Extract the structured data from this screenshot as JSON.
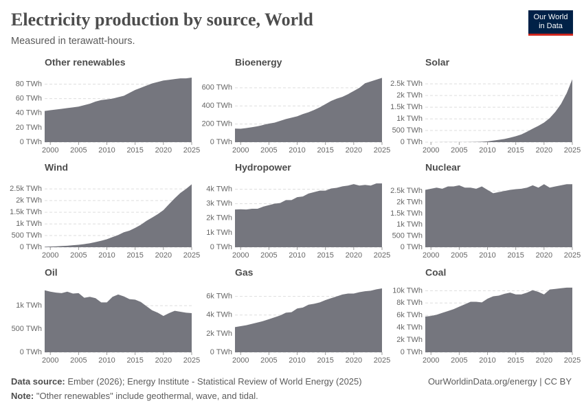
{
  "title": "Electricity production by source, World",
  "subtitle": "Measured in terawatt-hours.",
  "logo": [
    "Our World",
    "in Data"
  ],
  "source_label": "Data source:",
  "source": "Ember (2026); Energy Institute - Statistical Review of World Energy (2025)",
  "url": "OurWorldinData.org/energy | CC BY",
  "note_label": "Note:",
  "note": "\"Other renewables\" include geothermal, wave, and tidal.",
  "chart_data": [
    {
      "type": "area",
      "title": "Other renewables",
      "color": "#75767e",
      "x": [
        1999,
        2000,
        2001,
        2002,
        2003,
        2004,
        2005,
        2006,
        2007,
        2008,
        2009,
        2010,
        2011,
        2012,
        2013,
        2014,
        2015,
        2016,
        2017,
        2018,
        2019,
        2020,
        2021,
        2022,
        2023,
        2024,
        2025
      ],
      "values": [
        43,
        44,
        45,
        46,
        47,
        48,
        49,
        51,
        53,
        56,
        58,
        59,
        60,
        62,
        64,
        68,
        72,
        75,
        78,
        81,
        83,
        85,
        86,
        87,
        88,
        88,
        89
      ],
      "xlim": [
        1999,
        2025
      ],
      "xticks": [
        2000,
        2005,
        2010,
        2015,
        2020,
        2025
      ],
      "ylim": [
        0,
        90
      ],
      "yticks": [
        {
          "value": 0,
          "label": "0 TWh"
        },
        {
          "value": 20,
          "label": "20 TWh"
        },
        {
          "value": 40,
          "label": "40 TWh"
        },
        {
          "value": 60,
          "label": "60 TWh"
        },
        {
          "value": 80,
          "label": "80 TWh"
        }
      ],
      "grid": true
    },
    {
      "type": "area",
      "title": "Bioenergy",
      "color": "#75767e",
      "x": [
        1999,
        2000,
        2001,
        2002,
        2003,
        2004,
        2005,
        2006,
        2007,
        2008,
        2009,
        2010,
        2011,
        2012,
        2013,
        2014,
        2015,
        2016,
        2017,
        2018,
        2019,
        2020,
        2021,
        2022,
        2023,
        2024,
        2025
      ],
      "values": [
        150,
        148,
        155,
        165,
        175,
        190,
        205,
        215,
        235,
        255,
        270,
        285,
        310,
        330,
        355,
        385,
        420,
        455,
        480,
        500,
        530,
        565,
        600,
        650,
        670,
        690,
        710
      ],
      "xlim": [
        1999,
        2025
      ],
      "xticks": [
        2000,
        2005,
        2010,
        2015,
        2020,
        2025
      ],
      "ylim": [
        0,
        720
      ],
      "yticks": [
        {
          "value": 0,
          "label": "0 TWh"
        },
        {
          "value": 200,
          "label": "200 TWh"
        },
        {
          "value": 400,
          "label": "400 TWh"
        },
        {
          "value": 600,
          "label": "600 TWh"
        }
      ],
      "grid": true
    },
    {
      "type": "area",
      "title": "Solar",
      "color": "#75767e",
      "x": [
        1999,
        2000,
        2001,
        2002,
        2003,
        2004,
        2005,
        2006,
        2007,
        2008,
        2009,
        2010,
        2011,
        2012,
        2013,
        2014,
        2015,
        2016,
        2017,
        2018,
        2019,
        2020,
        2021,
        2022,
        2023,
        2024,
        2025
      ],
      "values": [
        1,
        1,
        1,
        2,
        2,
        3,
        4,
        5,
        7,
        12,
        20,
        33,
        65,
        100,
        135,
        190,
        255,
        330,
        450,
        580,
        700,
        840,
        1030,
        1300,
        1640,
        2100,
        2700
      ],
      "xlim": [
        1999,
        2025
      ],
      "xticks": [
        2000,
        2005,
        2010,
        2015,
        2020,
        2025
      ],
      "ylim": [
        0,
        2800
      ],
      "yticks": [
        {
          "value": 0,
          "label": "0 TWh"
        },
        {
          "value": 500,
          "label": "500 TWh"
        },
        {
          "value": 1000,
          "label": "1k TWh"
        },
        {
          "value": 1500,
          "label": "1.5k TWh"
        },
        {
          "value": 2000,
          "label": "2k TWh"
        },
        {
          "value": 2500,
          "label": "2.5k TWh"
        }
      ],
      "grid": true
    },
    {
      "type": "area",
      "title": "Wind",
      "color": "#75767e",
      "x": [
        1999,
        2000,
        2001,
        2002,
        2003,
        2004,
        2005,
        2006,
        2007,
        2008,
        2009,
        2010,
        2011,
        2012,
        2013,
        2014,
        2015,
        2016,
        2017,
        2018,
        2019,
        2020,
        2021,
        2022,
        2023,
        2024,
        2025
      ],
      "values": [
        20,
        31,
        38,
        52,
        64,
        85,
        104,
        133,
        170,
        220,
        276,
        342,
        435,
        525,
        640,
        710,
        830,
        960,
        1130,
        1270,
        1420,
        1590,
        1850,
        2100,
        2330,
        2500,
        2700
      ],
      "xlim": [
        1999,
        2025
      ],
      "xticks": [
        2000,
        2005,
        2010,
        2015,
        2020,
        2025
      ],
      "ylim": [
        0,
        2800
      ],
      "yticks": [
        {
          "value": 0,
          "label": "0 TWh"
        },
        {
          "value": 500,
          "label": "500 TWh"
        },
        {
          "value": 1000,
          "label": "1k TWh"
        },
        {
          "value": 1500,
          "label": "1.5k TWh"
        },
        {
          "value": 2000,
          "label": "2k TWh"
        },
        {
          "value": 2500,
          "label": "2.5k TWh"
        }
      ],
      "grid": true
    },
    {
      "type": "area",
      "title": "Hydropower",
      "color": "#75767e",
      "x": [
        1999,
        2000,
        2001,
        2002,
        2003,
        2004,
        2005,
        2006,
        2007,
        2008,
        2009,
        2010,
        2011,
        2012,
        2013,
        2014,
        2015,
        2016,
        2017,
        2018,
        2019,
        2020,
        2021,
        2022,
        2023,
        2024,
        2025
      ],
      "values": [
        2600,
        2620,
        2600,
        2650,
        2650,
        2800,
        2900,
        3000,
        3050,
        3250,
        3250,
        3450,
        3500,
        3700,
        3800,
        3900,
        3900,
        4050,
        4100,
        4200,
        4250,
        4350,
        4250,
        4300,
        4250,
        4400,
        4400
      ],
      "xlim": [
        1999,
        2025
      ],
      "xticks": [
        2000,
        2005,
        2010,
        2015,
        2020,
        2025
      ],
      "ylim": [
        0,
        4500
      ],
      "yticks": [
        {
          "value": 0,
          "label": "0 TWh"
        },
        {
          "value": 1000,
          "label": "1k TWh"
        },
        {
          "value": 2000,
          "label": "2k TWh"
        },
        {
          "value": 3000,
          "label": "3k TWh"
        },
        {
          "value": 4000,
          "label": "4k TWh"
        }
      ],
      "grid": true
    },
    {
      "type": "area",
      "title": "Nuclear",
      "color": "#75767e",
      "x": [
        1999,
        2000,
        2001,
        2002,
        2003,
        2004,
        2005,
        2006,
        2007,
        2008,
        2009,
        2010,
        2011,
        2012,
        2013,
        2014,
        2015,
        2016,
        2017,
        2018,
        2019,
        2020,
        2021,
        2022,
        2023,
        2024,
        2025
      ],
      "values": [
        2550,
        2600,
        2650,
        2600,
        2700,
        2700,
        2750,
        2650,
        2650,
        2600,
        2700,
        2550,
        2400,
        2450,
        2500,
        2550,
        2580,
        2600,
        2650,
        2750,
        2650,
        2800,
        2650,
        2700,
        2750,
        2800,
        2800
      ],
      "xlim": [
        1999,
        2025
      ],
      "xticks": [
        2000,
        2005,
        2010,
        2015,
        2020,
        2025
      ],
      "ylim": [
        0,
        2900
      ],
      "yticks": [
        {
          "value": 0,
          "label": "0 TWh"
        },
        {
          "value": 500,
          "label": "500 TWh"
        },
        {
          "value": 1000,
          "label": "1k TWh"
        },
        {
          "value": 1500,
          "label": "1.5k TWh"
        },
        {
          "value": 2000,
          "label": "2k TWh"
        },
        {
          "value": 2500,
          "label": "2.5k TWh"
        }
      ],
      "grid": true
    },
    {
      "type": "area",
      "title": "Oil",
      "color": "#75767e",
      "x": [
        1999,
        2000,
        2001,
        2002,
        2003,
        2004,
        2005,
        2006,
        2007,
        2008,
        2009,
        2010,
        2011,
        2012,
        2013,
        2014,
        2015,
        2016,
        2017,
        2018,
        2019,
        2020,
        2021,
        2022,
        2023,
        2024,
        2025
      ],
      "values": [
        1330,
        1300,
        1280,
        1270,
        1300,
        1260,
        1270,
        1170,
        1190,
        1160,
        1070,
        1070,
        1190,
        1240,
        1200,
        1140,
        1130,
        1080,
        990,
        900,
        850,
        780,
        840,
        890,
        870,
        850,
        840
      ],
      "xlim": [
        1999,
        2025
      ],
      "xticks": [
        2000,
        2005,
        2010,
        2015,
        2020,
        2025
      ],
      "ylim": [
        0,
        1400
      ],
      "yticks": [
        {
          "value": 0,
          "label": "0 TWh"
        },
        {
          "value": 500,
          "label": "500 TWh"
        },
        {
          "value": 1000,
          "label": "1k TWh"
        }
      ],
      "grid": true
    },
    {
      "type": "area",
      "title": "Gas",
      "color": "#75767e",
      "x": [
        1999,
        2000,
        2001,
        2002,
        2003,
        2004,
        2005,
        2006,
        2007,
        2008,
        2009,
        2010,
        2011,
        2012,
        2013,
        2014,
        2015,
        2016,
        2017,
        2018,
        2019,
        2020,
        2021,
        2022,
        2023,
        2024,
        2025
      ],
      "values": [
        2700,
        2800,
        2900,
        3050,
        3200,
        3350,
        3550,
        3750,
        3950,
        4250,
        4300,
        4700,
        4800,
        5100,
        5200,
        5350,
        5600,
        5800,
        6000,
        6200,
        6300,
        6300,
        6450,
        6550,
        6600,
        6750,
        6850
      ],
      "xlim": [
        1999,
        2025
      ],
      "xticks": [
        2000,
        2005,
        2010,
        2015,
        2020,
        2025
      ],
      "ylim": [
        0,
        7000
      ],
      "yticks": [
        {
          "value": 0,
          "label": "0 TWh"
        },
        {
          "value": 2000,
          "label": "2k TWh"
        },
        {
          "value": 4000,
          "label": "4k TWh"
        },
        {
          "value": 6000,
          "label": "6k TWh"
        }
      ],
      "grid": true
    },
    {
      "type": "area",
      "title": "Coal",
      "color": "#75767e",
      "x": [
        1999,
        2000,
        2001,
        2002,
        2003,
        2004,
        2005,
        2006,
        2007,
        2008,
        2009,
        2010,
        2011,
        2012,
        2013,
        2014,
        2015,
        2016,
        2017,
        2018,
        2019,
        2020,
        2021,
        2022,
        2023,
        2024,
        2025
      ],
      "values": [
        5800,
        5900,
        6100,
        6400,
        6700,
        7000,
        7400,
        7800,
        8200,
        8200,
        8100,
        8700,
        9100,
        9200,
        9500,
        9700,
        9400,
        9400,
        9700,
        10100,
        9800,
        9400,
        10200,
        10300,
        10400,
        10500,
        10500
      ],
      "xlim": [
        1999,
        2025
      ],
      "xticks": [
        2000,
        2005,
        2010,
        2015,
        2020,
        2025
      ],
      "ylim": [
        0,
        10600
      ],
      "yticks": [
        {
          "value": 0,
          "label": "0 TWh"
        },
        {
          "value": 2000,
          "label": "2k TWh"
        },
        {
          "value": 4000,
          "label": "4k TWh"
        },
        {
          "value": 6000,
          "label": "6k TWh"
        },
        {
          "value": 8000,
          "label": "8k TWh"
        },
        {
          "value": 10000,
          "label": "10k TWh"
        }
      ],
      "grid": true
    }
  ]
}
